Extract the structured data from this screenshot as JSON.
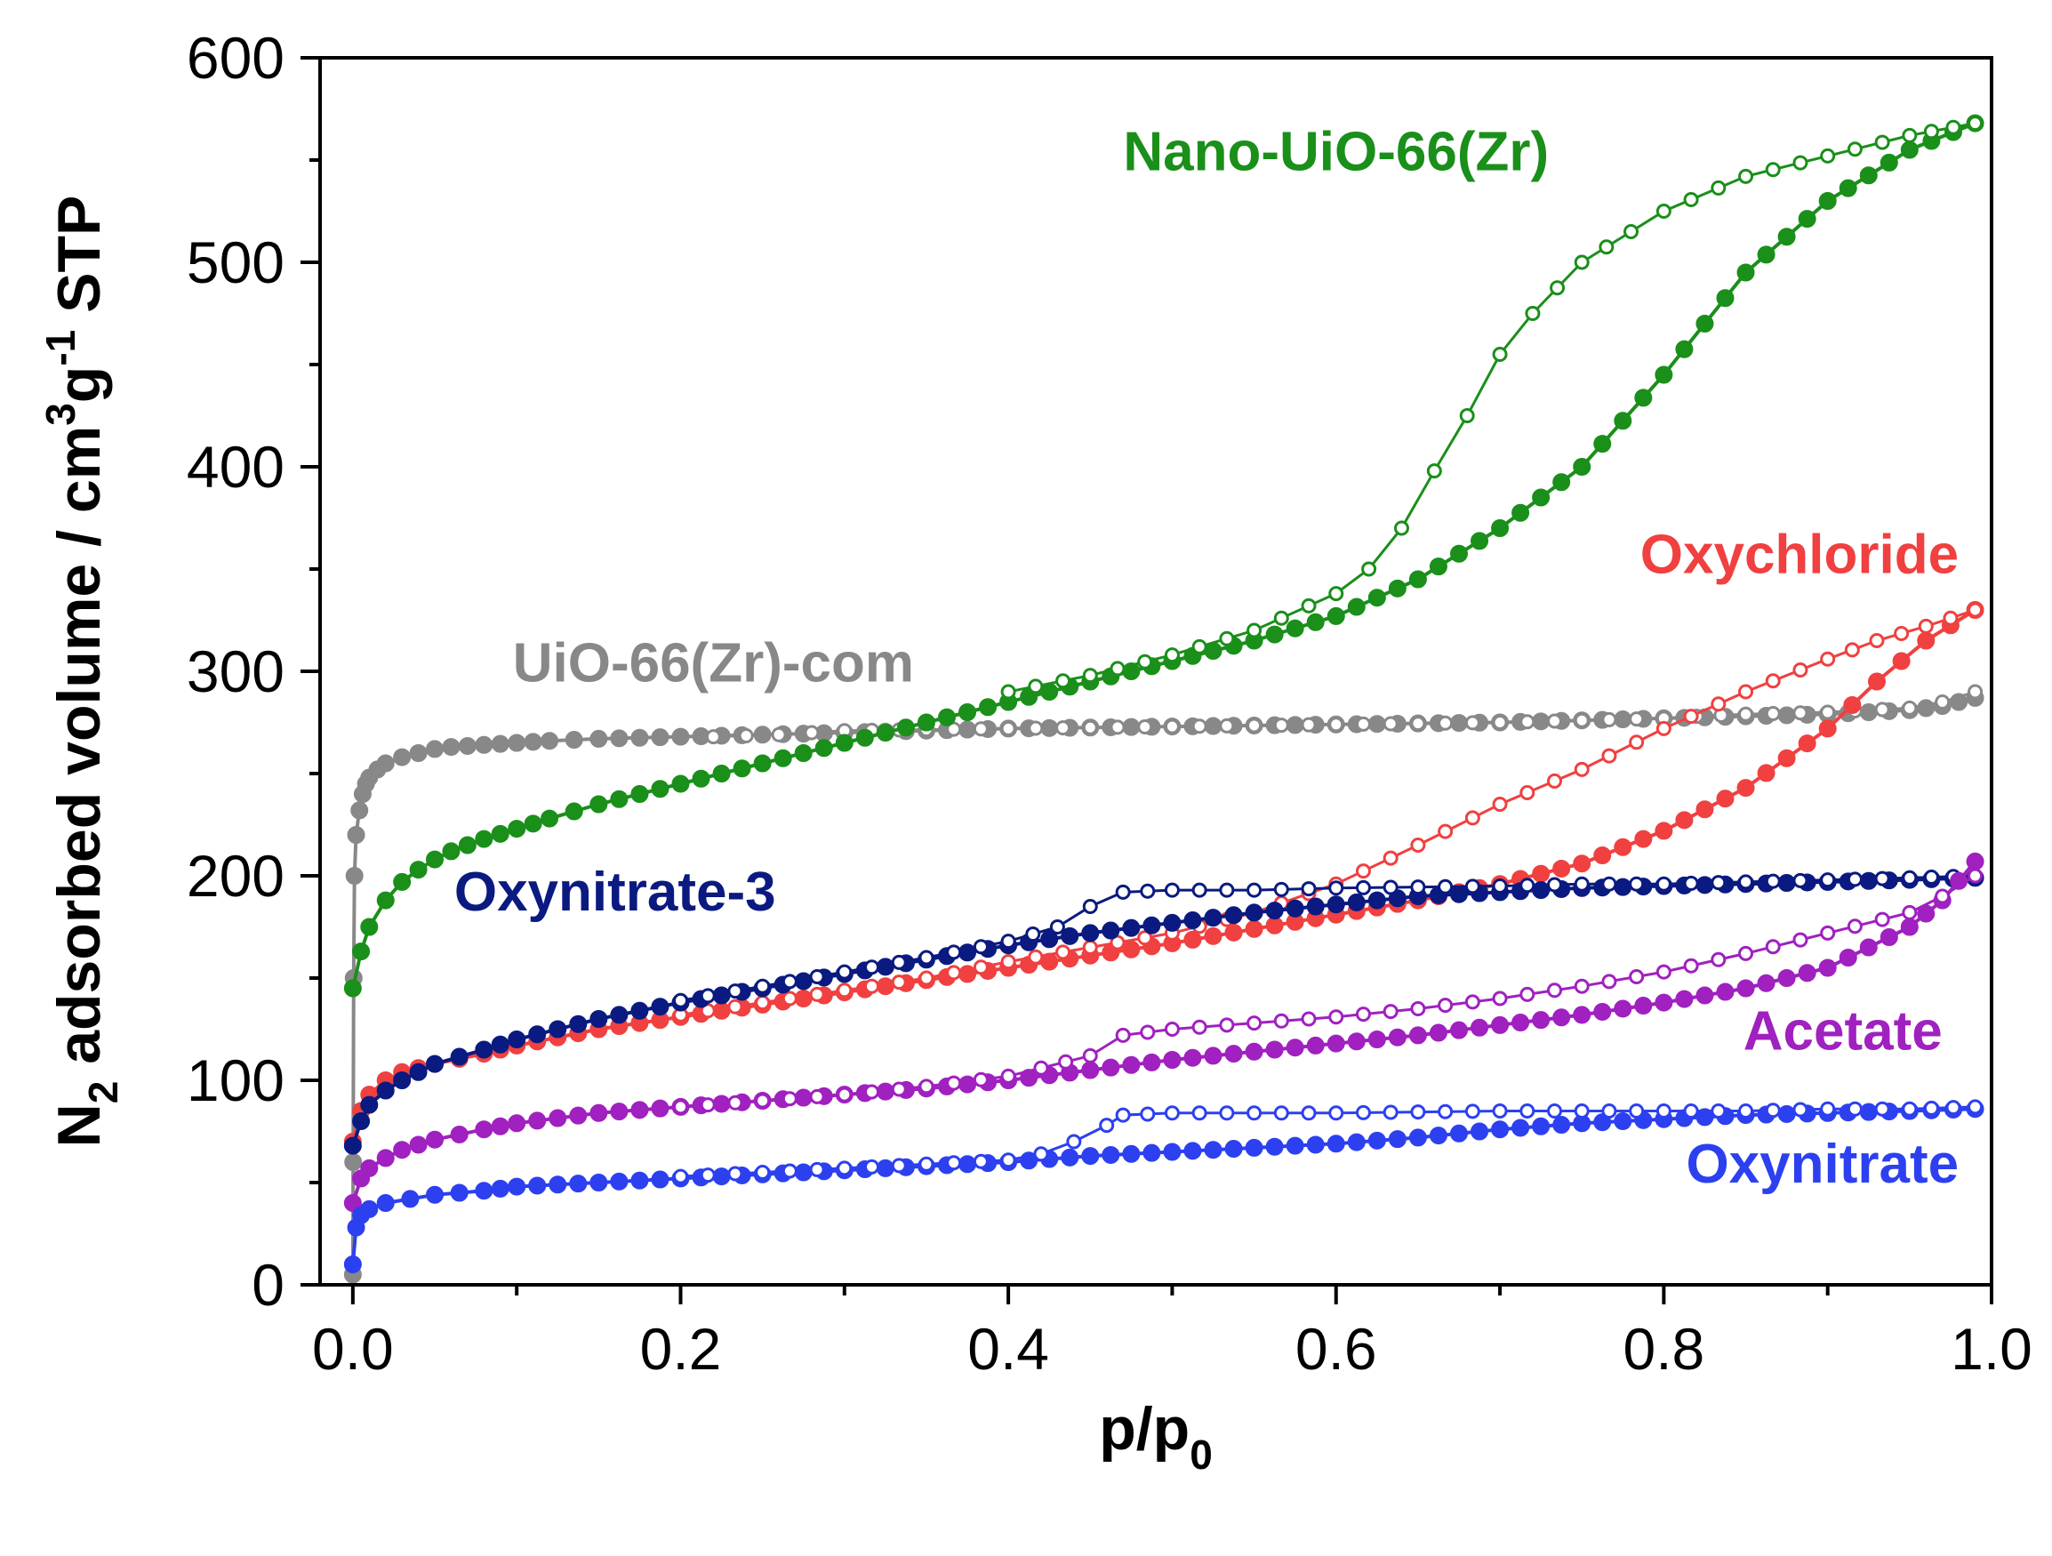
{
  "chart_data": {
    "type": "line",
    "xlabel": "p/p",
    "xlabel_sub": "0",
    "ylabel_parts": [
      "N",
      "2",
      " adsorbed volume / cm",
      "3",
      "g",
      "-1",
      " STP"
    ],
    "xlim": [
      -0.02,
      1.0
    ],
    "ylim": [
      0,
      600
    ],
    "x_ticks": [
      0.0,
      0.2,
      0.4,
      0.6,
      0.8,
      1.0
    ],
    "x_tick_labels": [
      "0.0",
      "0.2",
      "0.4",
      "0.6",
      "0.8",
      "1.0"
    ],
    "y_ticks": [
      0,
      100,
      200,
      300,
      400,
      500,
      600
    ],
    "y_tick_labels": [
      "0",
      "100",
      "200",
      "300",
      "400",
      "500",
      "600"
    ],
    "grid": false,
    "series": [
      {
        "name": "UiO-66(Zr)-com",
        "color": "#888888",
        "adsorption": [
          [
            0.0,
            5
          ],
          [
            0.0002,
            60
          ],
          [
            0.0005,
            150
          ],
          [
            0.001,
            200
          ],
          [
            0.002,
            220
          ],
          [
            0.004,
            232
          ],
          [
            0.006,
            240
          ],
          [
            0.008,
            245
          ],
          [
            0.01,
            248
          ],
          [
            0.015,
            252
          ],
          [
            0.02,
            255
          ],
          [
            0.03,
            258
          ],
          [
            0.04,
            260
          ],
          [
            0.05,
            262
          ],
          [
            0.06,
            263
          ],
          [
            0.08,
            264
          ],
          [
            0.1,
            265
          ],
          [
            0.12,
            266
          ],
          [
            0.15,
            267
          ],
          [
            0.2,
            268
          ],
          [
            0.25,
            269
          ],
          [
            0.3,
            270
          ],
          [
            0.35,
            271
          ],
          [
            0.4,
            272
          ],
          [
            0.45,
            272.5
          ],
          [
            0.5,
            273
          ],
          [
            0.55,
            273.5
          ],
          [
            0.6,
            274
          ],
          [
            0.65,
            274.5
          ],
          [
            0.7,
            275
          ],
          [
            0.75,
            276
          ],
          [
            0.8,
            277
          ],
          [
            0.85,
            278
          ],
          [
            0.9,
            279
          ],
          [
            0.95,
            281
          ],
          [
            0.97,
            283
          ],
          [
            0.99,
            287
          ]
        ],
        "desorption": [
          [
            0.99,
            290
          ],
          [
            0.97,
            285
          ],
          [
            0.95,
            282
          ],
          [
            0.9,
            280
          ],
          [
            0.85,
            279
          ],
          [
            0.82,
            278
          ],
          [
            0.8,
            277
          ],
          [
            0.75,
            276
          ],
          [
            0.7,
            275
          ],
          [
            0.6,
            274
          ],
          [
            0.5,
            273
          ],
          [
            0.4,
            272
          ],
          [
            0.3,
            271
          ],
          [
            0.28,
            270
          ],
          [
            0.26,
            269
          ],
          [
            0.24,
            268.5
          ],
          [
            0.22,
            268
          ]
        ]
      },
      {
        "name": "Nano-UiO-66(Zr)",
        "color": "#1a8f1a",
        "adsorption": [
          [
            0.0,
            145
          ],
          [
            0.005,
            163
          ],
          [
            0.01,
            175
          ],
          [
            0.02,
            188
          ],
          [
            0.03,
            197
          ],
          [
            0.04,
            203
          ],
          [
            0.05,
            208
          ],
          [
            0.06,
            212
          ],
          [
            0.08,
            218
          ],
          [
            0.1,
            223
          ],
          [
            0.12,
            228
          ],
          [
            0.15,
            235
          ],
          [
            0.2,
            245
          ],
          [
            0.25,
            255
          ],
          [
            0.3,
            265
          ],
          [
            0.35,
            275
          ],
          [
            0.4,
            285
          ],
          [
            0.45,
            295
          ],
          [
            0.5,
            305
          ],
          [
            0.55,
            315
          ],
          [
            0.6,
            327
          ],
          [
            0.65,
            345
          ],
          [
            0.7,
            370
          ],
          [
            0.75,
            400
          ],
          [
            0.8,
            445
          ],
          [
            0.85,
            495
          ],
          [
            0.9,
            530
          ],
          [
            0.95,
            555
          ],
          [
            0.99,
            568
          ]
        ],
        "desorption": [
          [
            0.99,
            568
          ],
          [
            0.95,
            562
          ],
          [
            0.9,
            552
          ],
          [
            0.85,
            542
          ],
          [
            0.8,
            525
          ],
          [
            0.78,
            515
          ],
          [
            0.75,
            500
          ],
          [
            0.72,
            475
          ],
          [
            0.7,
            455
          ],
          [
            0.68,
            425
          ],
          [
            0.66,
            398
          ],
          [
            0.64,
            370
          ],
          [
            0.62,
            350
          ],
          [
            0.6,
            338
          ],
          [
            0.55,
            320
          ],
          [
            0.5,
            308
          ],
          [
            0.45,
            298
          ],
          [
            0.4,
            290
          ]
        ]
      },
      {
        "name": "Oxychloride",
        "color": "#f04040",
        "adsorption": [
          [
            0.0,
            70
          ],
          [
            0.005,
            85
          ],
          [
            0.01,
            93
          ],
          [
            0.02,
            100
          ],
          [
            0.03,
            104
          ],
          [
            0.05,
            108
          ],
          [
            0.08,
            113
          ],
          [
            0.1,
            117
          ],
          [
            0.15,
            125
          ],
          [
            0.2,
            131
          ],
          [
            0.25,
            137
          ],
          [
            0.3,
            143
          ],
          [
            0.35,
            149
          ],
          [
            0.4,
            155
          ],
          [
            0.45,
            161
          ],
          [
            0.5,
            167
          ],
          [
            0.55,
            174
          ],
          [
            0.6,
            181
          ],
          [
            0.65,
            188
          ],
          [
            0.7,
            196
          ],
          [
            0.75,
            206
          ],
          [
            0.8,
            222
          ],
          [
            0.85,
            243
          ],
          [
            0.9,
            272
          ],
          [
            0.93,
            295
          ],
          [
            0.96,
            315
          ],
          [
            0.99,
            330
          ]
        ],
        "desorption": [
          [
            0.99,
            330
          ],
          [
            0.96,
            322
          ],
          [
            0.93,
            315
          ],
          [
            0.9,
            306
          ],
          [
            0.85,
            290
          ],
          [
            0.8,
            272
          ],
          [
            0.75,
            252
          ],
          [
            0.7,
            235
          ],
          [
            0.65,
            215
          ],
          [
            0.6,
            196
          ],
          [
            0.55,
            182
          ],
          [
            0.5,
            172
          ],
          [
            0.45,
            165
          ],
          [
            0.4,
            158
          ],
          [
            0.35,
            150
          ],
          [
            0.3,
            144
          ],
          [
            0.25,
            138
          ],
          [
            0.2,
            132
          ]
        ]
      },
      {
        "name": "Oxynitrate-3",
        "color": "#0a1a80",
        "adsorption": [
          [
            0.0,
            68
          ],
          [
            0.005,
            80
          ],
          [
            0.01,
            88
          ],
          [
            0.02,
            95
          ],
          [
            0.03,
            100
          ],
          [
            0.05,
            108
          ],
          [
            0.08,
            115
          ],
          [
            0.1,
            120
          ],
          [
            0.15,
            130
          ],
          [
            0.2,
            138
          ],
          [
            0.25,
            145
          ],
          [
            0.3,
            152
          ],
          [
            0.35,
            159
          ],
          [
            0.4,
            166
          ],
          [
            0.45,
            172
          ],
          [
            0.5,
            177
          ],
          [
            0.55,
            182
          ],
          [
            0.6,
            186
          ],
          [
            0.65,
            190
          ],
          [
            0.7,
            192
          ],
          [
            0.75,
            194
          ],
          [
            0.8,
            195
          ],
          [
            0.85,
            196
          ],
          [
            0.9,
            197
          ],
          [
            0.95,
            198
          ],
          [
            0.99,
            199
          ]
        ],
        "desorption": [
          [
            0.99,
            200
          ],
          [
            0.95,
            199
          ],
          [
            0.9,
            198
          ],
          [
            0.85,
            197
          ],
          [
            0.8,
            196
          ],
          [
            0.75,
            196
          ],
          [
            0.7,
            195
          ],
          [
            0.6,
            194
          ],
          [
            0.55,
            193
          ],
          [
            0.5,
            193
          ],
          [
            0.47,
            192
          ],
          [
            0.45,
            185
          ],
          [
            0.43,
            175
          ],
          [
            0.4,
            168
          ],
          [
            0.35,
            160
          ],
          [
            0.3,
            153
          ],
          [
            0.25,
            146
          ],
          [
            0.2,
            139
          ]
        ]
      },
      {
        "name": "Acetate",
        "color": "#a020c0",
        "adsorption": [
          [
            0.0,
            40
          ],
          [
            0.005,
            52
          ],
          [
            0.01,
            57
          ],
          [
            0.02,
            62
          ],
          [
            0.03,
            66
          ],
          [
            0.05,
            71
          ],
          [
            0.08,
            76
          ],
          [
            0.1,
            79
          ],
          [
            0.15,
            84
          ],
          [
            0.2,
            87
          ],
          [
            0.25,
            90
          ],
          [
            0.3,
            93
          ],
          [
            0.35,
            96
          ],
          [
            0.4,
            100
          ],
          [
            0.45,
            105
          ],
          [
            0.5,
            110
          ],
          [
            0.55,
            114
          ],
          [
            0.6,
            118
          ],
          [
            0.65,
            122
          ],
          [
            0.7,
            127
          ],
          [
            0.75,
            132
          ],
          [
            0.8,
            138
          ],
          [
            0.85,
            145
          ],
          [
            0.9,
            155
          ],
          [
            0.95,
            175
          ],
          [
            0.97,
            188
          ],
          [
            0.99,
            207
          ]
        ],
        "desorption": [
          [
            0.99,
            200
          ],
          [
            0.97,
            190
          ],
          [
            0.95,
            182
          ],
          [
            0.9,
            172
          ],
          [
            0.85,
            162
          ],
          [
            0.8,
            153
          ],
          [
            0.75,
            146
          ],
          [
            0.7,
            140
          ],
          [
            0.65,
            135
          ],
          [
            0.6,
            131
          ],
          [
            0.55,
            128
          ],
          [
            0.5,
            125
          ],
          [
            0.47,
            122
          ],
          [
            0.45,
            112
          ],
          [
            0.42,
            106
          ],
          [
            0.4,
            102
          ],
          [
            0.35,
            97
          ],
          [
            0.3,
            93
          ],
          [
            0.25,
            90
          ],
          [
            0.2,
            87
          ]
        ]
      },
      {
        "name": "Oxynitrate",
        "color": "#2c40f0",
        "adsorption": [
          [
            0.0,
            10
          ],
          [
            0.002,
            28
          ],
          [
            0.005,
            34
          ],
          [
            0.01,
            37
          ],
          [
            0.02,
            40
          ],
          [
            0.05,
            44
          ],
          [
            0.08,
            46
          ],
          [
            0.1,
            48
          ],
          [
            0.15,
            50
          ],
          [
            0.2,
            52
          ],
          [
            0.25,
            54
          ],
          [
            0.3,
            56
          ],
          [
            0.35,
            58
          ],
          [
            0.4,
            60
          ],
          [
            0.45,
            63
          ],
          [
            0.5,
            65
          ],
          [
            0.55,
            67
          ],
          [
            0.6,
            69
          ],
          [
            0.65,
            72
          ],
          [
            0.7,
            76
          ],
          [
            0.75,
            79
          ],
          [
            0.8,
            81
          ],
          [
            0.85,
            83
          ],
          [
            0.9,
            84
          ],
          [
            0.95,
            85
          ],
          [
            0.99,
            86
          ]
        ],
        "desorption": [
          [
            0.99,
            87
          ],
          [
            0.95,
            86
          ],
          [
            0.9,
            86
          ],
          [
            0.85,
            85
          ],
          [
            0.8,
            85
          ],
          [
            0.75,
            85
          ],
          [
            0.7,
            85
          ],
          [
            0.6,
            84
          ],
          [
            0.5,
            84
          ],
          [
            0.47,
            83
          ],
          [
            0.46,
            78
          ],
          [
            0.44,
            70
          ],
          [
            0.42,
            64
          ],
          [
            0.4,
            61
          ],
          [
            0.35,
            59
          ],
          [
            0.3,
            57
          ],
          [
            0.25,
            55
          ],
          [
            0.2,
            53
          ]
        ]
      }
    ],
    "annotations": [
      {
        "text": "Nano-UiO-66(Zr)",
        "color": "#1a8f1a",
        "x": 0.6,
        "y": 545,
        "anchor": "middle"
      },
      {
        "text": "UiO-66(Zr)-com",
        "color": "#888888",
        "x": 0.22,
        "y": 295,
        "anchor": "middle"
      },
      {
        "text": "Oxychloride",
        "color": "#f04040",
        "x": 0.98,
        "y": 348,
        "anchor": "end"
      },
      {
        "text": "Oxynitrate-3",
        "color": "#0a1a80",
        "x": 0.16,
        "y": 183,
        "anchor": "middle"
      },
      {
        "text": "Acetate",
        "color": "#a020c0",
        "x": 0.97,
        "y": 115,
        "anchor": "end"
      },
      {
        "text": "Oxynitrate",
        "color": "#2c40f0",
        "x": 0.98,
        "y": 50,
        "anchor": "end"
      }
    ]
  }
}
